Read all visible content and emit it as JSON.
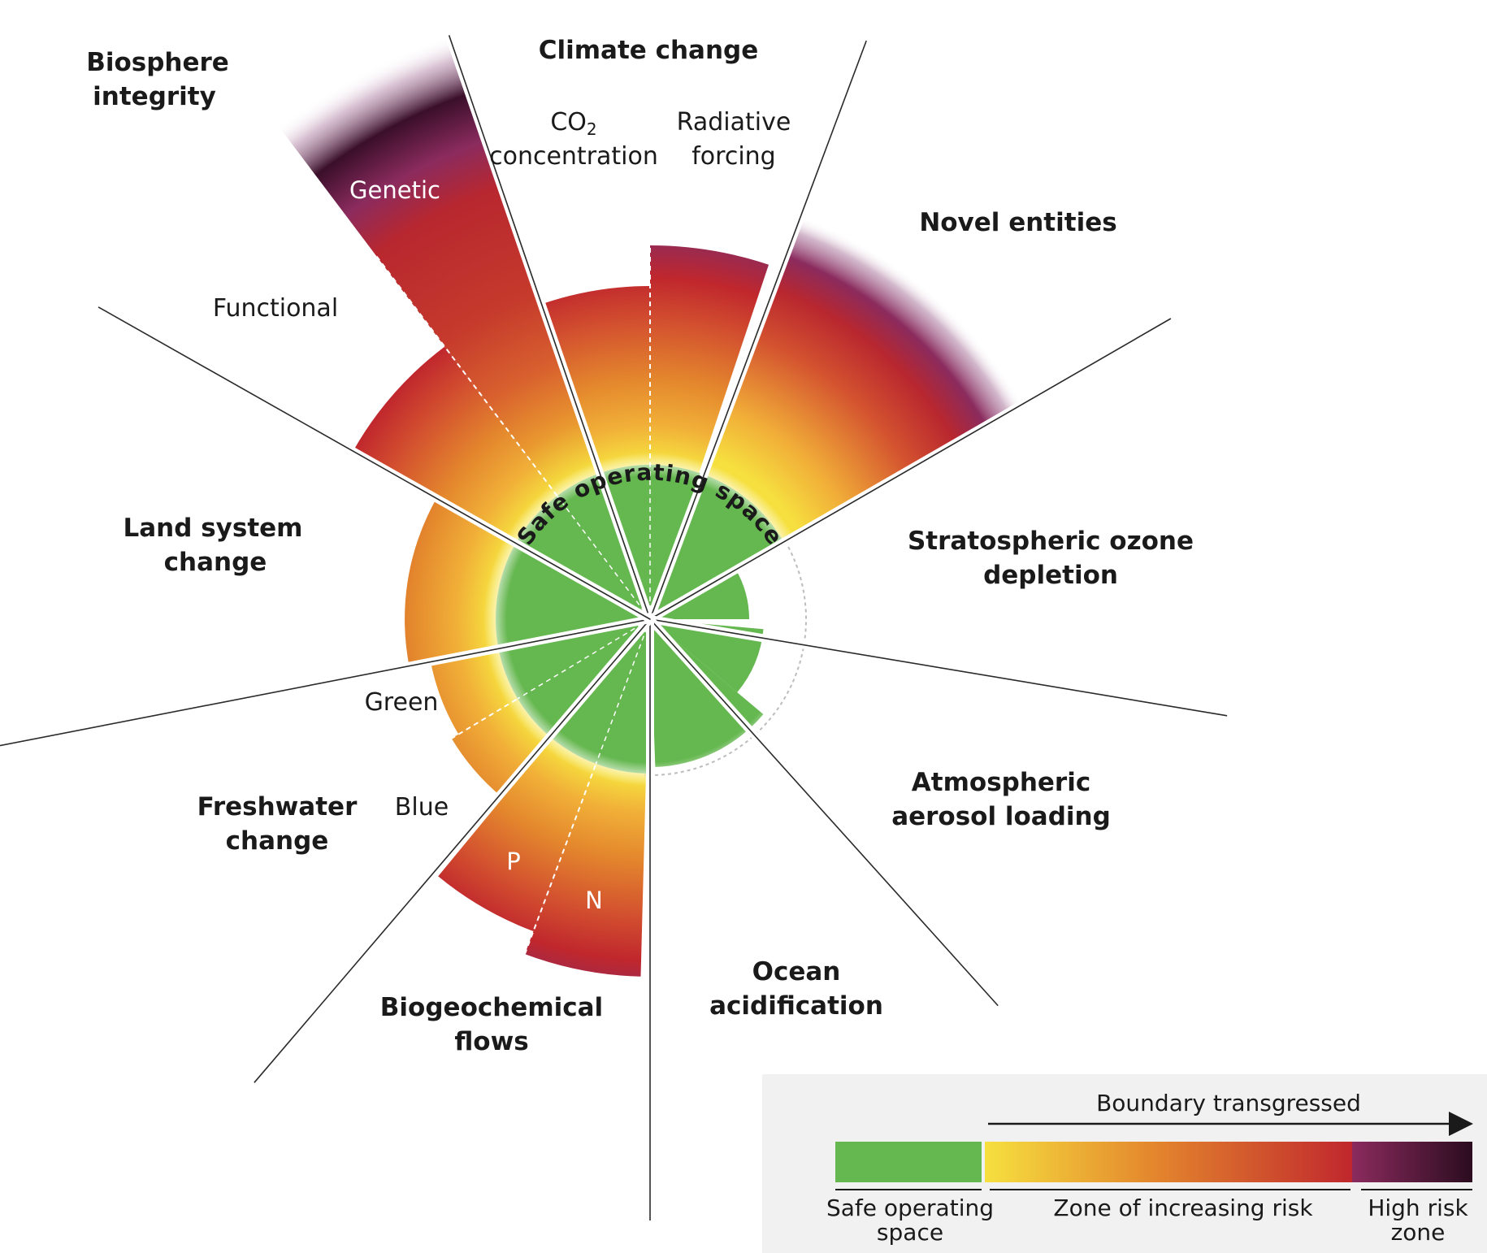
{
  "center_label": "Safe operating space",
  "boundaries": [
    {
      "name": "Climate change",
      "sub": [
        "CO2 concentration",
        "Radiative forcing"
      ]
    },
    {
      "name": "Novel entities"
    },
    {
      "name": "Stratospheric ozone depletion"
    },
    {
      "name": "Atmospheric aerosol loading"
    },
    {
      "name": "Ocean acidification"
    },
    {
      "name": "Biogeochemical flows",
      "sub": [
        "P",
        "N"
      ]
    },
    {
      "name": "Freshwater change",
      "sub": [
        "Blue",
        "Green"
      ]
    },
    {
      "name": "Land system change"
    },
    {
      "name": "Biosphere integrity",
      "sub": [
        "Functional",
        "Genetic"
      ]
    }
  ],
  "labels": {
    "climate": "Climate change",
    "co2_line1": "CO",
    "co2_sub": "2",
    "co2_line2": "concentration",
    "rad_line1": "Radiative",
    "rad_line2": "forcing",
    "novel": "Novel entities",
    "ozone_line1": "Stratospheric ozone",
    "ozone_line2": "depletion",
    "aerosol_line1": "Atmospheric",
    "aerosol_line2": "aerosol loading",
    "ocean_line1": "Ocean",
    "ocean_line2": "acidification",
    "bgc_line1": "Biogeochemical",
    "bgc_line2": "flows",
    "p": "P",
    "n": "N",
    "fw_line1": "Freshwater",
    "fw_line2": "change",
    "blue": "Blue",
    "green": "Green",
    "land_line1": "Land system",
    "land_line2": "change",
    "bio_line1": "Biosphere",
    "bio_line2": "integrity",
    "functional": "Functional",
    "genetic": "Genetic"
  },
  "legend": {
    "transgressed": "Boundary transgressed",
    "safe_line1": "Safe operating",
    "safe_line2": "space",
    "risk": "Zone of increasing risk",
    "high_line1": "High risk",
    "high_line2": "zone"
  },
  "colors": {
    "safe": "#65b74f",
    "risk_start": "#f6e03f",
    "risk_mid": "#e4882d",
    "risk_end": "#c0272d",
    "high_start": "#8b2b5e",
    "high_end": "#2b0c1f"
  }
}
